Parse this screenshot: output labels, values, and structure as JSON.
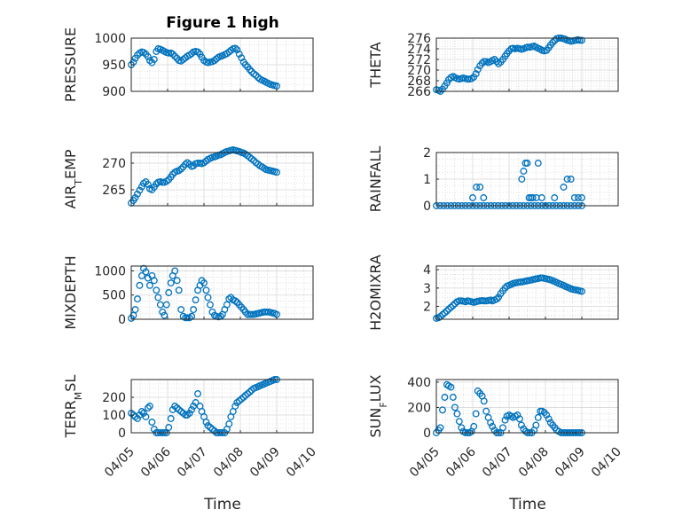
{
  "title": "Figure 1 high",
  "xlabel": "Time",
  "marker_color": "#0072BD",
  "x_ticks": [
    "04/05",
    "04/06",
    "04/07",
    "04/08",
    "04/09",
    "04/10"
  ],
  "chart_data": [
    {
      "type": "scatter",
      "ylabel": "PRESSURE",
      "ylim": [
        900,
        1000
      ],
      "yticks": [
        900,
        950,
        1000
      ],
      "xlim": [
        0,
        5
      ],
      "grid": true,
      "x": [
        0.0,
        0.06,
        0.11,
        0.17,
        0.23,
        0.29,
        0.34,
        0.4,
        0.46,
        0.51,
        0.57,
        0.63,
        0.69,
        0.74,
        0.8,
        0.86,
        0.91,
        0.97,
        1.03,
        1.09,
        1.14,
        1.2,
        1.26,
        1.31,
        1.37,
        1.43,
        1.49,
        1.54,
        1.6,
        1.66,
        1.71,
        1.77,
        1.83,
        1.89,
        1.94,
        2.0,
        2.06,
        2.11,
        2.17,
        2.23,
        2.29,
        2.34,
        2.4,
        2.46,
        2.51,
        2.57,
        2.63,
        2.69,
        2.74,
        2.8,
        2.86,
        2.91,
        2.97,
        3.03,
        3.09,
        3.14,
        3.2,
        3.26,
        3.31,
        3.37,
        3.43,
        3.49,
        3.54,
        3.6,
        3.66,
        3.71,
        3.77,
        3.83,
        3.89,
        3.94,
        4.0
      ],
      "y": [
        950,
        955,
        962,
        968,
        972,
        974,
        973,
        970,
        965,
        958,
        954,
        960,
        975,
        980,
        979,
        977,
        975,
        973,
        972,
        972,
        970,
        966,
        962,
        958,
        957,
        960,
        963,
        966,
        968,
        971,
        974,
        975,
        974,
        970,
        964,
        958,
        955,
        954,
        955,
        956,
        958,
        961,
        964,
        966,
        967,
        969,
        971,
        974,
        977,
        980,
        981,
        978,
        970,
        963,
        955,
        950,
        946,
        941,
        937,
        933,
        930,
        926,
        923,
        921,
        919,
        917,
        915,
        913,
        912,
        911,
        910
      ]
    },
    {
      "type": "scatter",
      "ylabel": "THETA",
      "ylim": [
        266,
        276
      ],
      "yticks": [
        266,
        268,
        270,
        272,
        274,
        276
      ],
      "xlim": [
        0,
        5
      ],
      "grid": true,
      "x": [
        0.0,
        0.06,
        0.11,
        0.17,
        0.23,
        0.29,
        0.34,
        0.4,
        0.46,
        0.51,
        0.57,
        0.63,
        0.69,
        0.74,
        0.8,
        0.86,
        0.91,
        0.97,
        1.03,
        1.09,
        1.14,
        1.2,
        1.26,
        1.31,
        1.37,
        1.43,
        1.49,
        1.54,
        1.6,
        1.66,
        1.71,
        1.77,
        1.83,
        1.89,
        1.94,
        2.0,
        2.06,
        2.11,
        2.17,
        2.23,
        2.29,
        2.34,
        2.4,
        2.46,
        2.51,
        2.57,
        2.63,
        2.69,
        2.74,
        2.8,
        2.86,
        2.91,
        2.97,
        3.03,
        3.09,
        3.14,
        3.2,
        3.26,
        3.31,
        3.37,
        3.43,
        3.49,
        3.54,
        3.6,
        3.66,
        3.71,
        3.77,
        3.83,
        3.89,
        3.94,
        4.0
      ],
      "y": [
        266.3,
        266.2,
        266.0,
        266.4,
        267.0,
        267.6,
        268.2,
        268.6,
        268.8,
        268.6,
        268.4,
        268.3,
        268.4,
        268.5,
        268.4,
        268.3,
        268.3,
        268.4,
        268.7,
        269.3,
        270.1,
        270.8,
        271.3,
        271.6,
        271.6,
        271.4,
        271.6,
        271.8,
        272.0,
        271.6,
        271.2,
        271.5,
        272.0,
        272.6,
        273.1,
        273.6,
        274.0,
        274.1,
        274.0,
        274.1,
        274.0,
        273.9,
        274.0,
        274.2,
        274.3,
        274.3,
        274.4,
        274.5,
        274.3,
        274.1,
        273.9,
        273.7,
        273.6,
        273.7,
        274.2,
        274.7,
        275.2,
        275.6,
        275.9,
        276.0,
        276.0,
        275.9,
        275.8,
        275.6,
        275.5,
        275.4,
        275.5,
        275.6,
        275.7,
        275.6,
        275.6
      ]
    },
    {
      "type": "scatter",
      "ylabel": "AIR_TEMP",
      "ylim": [
        262,
        272
      ],
      "yticks": [
        265,
        270
      ],
      "xlim": [
        0,
        5
      ],
      "grid": true,
      "x": [
        0.0,
        0.06,
        0.11,
        0.17,
        0.23,
        0.29,
        0.34,
        0.4,
        0.46,
        0.51,
        0.57,
        0.63,
        0.69,
        0.74,
        0.8,
        0.86,
        0.91,
        0.97,
        1.03,
        1.09,
        1.14,
        1.2,
        1.26,
        1.31,
        1.37,
        1.43,
        1.49,
        1.54,
        1.6,
        1.66,
        1.71,
        1.77,
        1.83,
        1.89,
        1.94,
        2.0,
        2.06,
        2.11,
        2.17,
        2.23,
        2.29,
        2.34,
        2.4,
        2.46,
        2.51,
        2.57,
        2.63,
        2.69,
        2.74,
        2.8,
        2.86,
        2.91,
        2.97,
        3.03,
        3.09,
        3.14,
        3.2,
        3.26,
        3.31,
        3.37,
        3.43,
        3.49,
        3.54,
        3.6,
        3.66,
        3.71,
        3.77,
        3.83,
        3.89,
        3.94,
        4.0
      ],
      "y": [
        262.5,
        263.0,
        263.5,
        264.2,
        264.9,
        265.6,
        266.2,
        266.5,
        266.0,
        265.2,
        265.0,
        265.5,
        266.1,
        266.4,
        266.5,
        266.4,
        266.4,
        266.6,
        266.9,
        267.4,
        267.9,
        268.3,
        268.5,
        268.6,
        268.9,
        269.3,
        269.8,
        270.1,
        269.8,
        269.4,
        269.5,
        269.9,
        270.0,
        270.0,
        269.9,
        270.1,
        270.4,
        270.7,
        270.9,
        271.1,
        271.2,
        271.3,
        271.5,
        271.6,
        271.8,
        272.0,
        272.2,
        272.3,
        272.4,
        272.5,
        272.4,
        272.3,
        272.2,
        272.0,
        271.9,
        271.7,
        271.4,
        271.1,
        270.8,
        270.5,
        270.1,
        269.8,
        269.5,
        269.3,
        269.0,
        268.8,
        268.7,
        268.6,
        268.5,
        268.4,
        268.3
      ]
    },
    {
      "type": "scatter",
      "ylabel": "RAINFALL",
      "ylim": [
        0,
        2
      ],
      "yticks": [
        0,
        1,
        2
      ],
      "xlim": [
        0,
        5
      ],
      "grid": true,
      "x": [
        0.0,
        0.1,
        0.2,
        0.3,
        0.4,
        0.5,
        0.6,
        0.7,
        0.8,
        0.9,
        1.0,
        1.1,
        1.2,
        1.3,
        1.4,
        1.5,
        1.6,
        1.7,
        1.8,
        1.9,
        2.0,
        2.1,
        2.2,
        2.3,
        2.4,
        2.5,
        2.6,
        2.7,
        2.8,
        2.9,
        3.0,
        3.1,
        3.2,
        3.3,
        3.4,
        3.5,
        3.6,
        3.7,
        3.8,
        3.9,
        4.0,
        1.0,
        1.1,
        1.2,
        1.3,
        2.35,
        2.4,
        2.45,
        2.5,
        2.55,
        2.6,
        2.65,
        2.75,
        2.8,
        2.9,
        3.0,
        3.25,
        3.5,
        3.6,
        3.7,
        3.8,
        3.9,
        4.0
      ],
      "y": [
        0,
        0,
        0,
        0,
        0,
        0,
        0,
        0,
        0,
        0,
        0,
        0,
        0,
        0,
        0,
        0,
        0,
        0,
        0,
        0,
        0,
        0,
        0,
        0,
        0,
        0,
        0,
        0,
        0,
        0,
        0,
        0,
        0,
        0,
        0,
        0,
        0,
        0,
        0,
        0,
        0,
        0.3,
        0.7,
        0.7,
        0.3,
        1.0,
        1.3,
        1.6,
        1.6,
        0.3,
        0.3,
        0.3,
        0.3,
        1.6,
        0.3,
        0,
        0.3,
        0.7,
        1.0,
        1.0,
        0.3,
        0.3,
        0.3
      ]
    },
    {
      "type": "scatter",
      "ylabel": "MIXDEPTH",
      "ylim": [
        0,
        1100
      ],
      "yticks": [
        0,
        500,
        1000
      ],
      "xlim": [
        0,
        5
      ],
      "grid": true,
      "x": [
        0.0,
        0.06,
        0.11,
        0.17,
        0.23,
        0.29,
        0.34,
        0.4,
        0.46,
        0.51,
        0.57,
        0.63,
        0.69,
        0.74,
        0.8,
        0.86,
        0.91,
        0.97,
        1.03,
        1.09,
        1.14,
        1.2,
        1.26,
        1.31,
        1.37,
        1.43,
        1.49,
        1.54,
        1.6,
        1.66,
        1.71,
        1.77,
        1.83,
        1.89,
        1.94,
        2.0,
        2.06,
        2.11,
        2.17,
        2.23,
        2.29,
        2.34,
        2.4,
        2.46,
        2.51,
        2.57,
        2.63,
        2.69,
        2.74,
        2.8,
        2.86,
        2.91,
        2.97,
        3.03,
        3.09,
        3.14,
        3.2,
        3.26,
        3.31,
        3.37,
        3.43,
        3.49,
        3.54,
        3.6,
        3.66,
        3.71,
        3.77,
        3.83,
        3.89,
        3.94,
        4.0
      ],
      "y": [
        20,
        80,
        200,
        420,
        700,
        900,
        1050,
        980,
        850,
        700,
        900,
        800,
        600,
        450,
        300,
        150,
        80,
        300,
        550,
        750,
        900,
        1000,
        800,
        600,
        200,
        60,
        30,
        30,
        30,
        60,
        200,
        400,
        600,
        700,
        800,
        750,
        600,
        450,
        300,
        150,
        80,
        60,
        50,
        60,
        100,
        200,
        300,
        420,
        450,
        400,
        380,
        350,
        300,
        250,
        200,
        150,
        100,
        100,
        100,
        100,
        110,
        120,
        130,
        140,
        150,
        150,
        150,
        140,
        130,
        120,
        100
      ]
    },
    {
      "type": "scatter",
      "ylabel": "H2OMIXRA",
      "ylim": [
        1.3,
        4.2
      ],
      "yticks": [
        2,
        3,
        4
      ],
      "xlim": [
        0,
        5
      ],
      "grid": true,
      "x": [
        0.0,
        0.06,
        0.11,
        0.17,
        0.23,
        0.29,
        0.34,
        0.4,
        0.46,
        0.51,
        0.57,
        0.63,
        0.69,
        0.74,
        0.8,
        0.86,
        0.91,
        0.97,
        1.03,
        1.09,
        1.14,
        1.2,
        1.26,
        1.31,
        1.37,
        1.43,
        1.49,
        1.54,
        1.6,
        1.66,
        1.71,
        1.77,
        1.83,
        1.89,
        1.94,
        2.0,
        2.06,
        2.11,
        2.17,
        2.23,
        2.29,
        2.34,
        2.4,
        2.46,
        2.51,
        2.57,
        2.63,
        2.69,
        2.74,
        2.8,
        2.86,
        2.91,
        2.97,
        3.03,
        3.09,
        3.14,
        3.2,
        3.26,
        3.31,
        3.37,
        3.43,
        3.49,
        3.54,
        3.6,
        3.66,
        3.71,
        3.77,
        3.83,
        3.89,
        3.94,
        4.0
      ],
      "y": [
        1.35,
        1.38,
        1.45,
        1.55,
        1.65,
        1.75,
        1.85,
        1.95,
        2.05,
        2.15,
        2.25,
        2.3,
        2.3,
        2.28,
        2.25,
        2.3,
        2.28,
        2.25,
        2.22,
        2.25,
        2.28,
        2.3,
        2.32,
        2.3,
        2.3,
        2.32,
        2.35,
        2.3,
        2.35,
        2.4,
        2.5,
        2.7,
        2.85,
        3.0,
        3.1,
        3.15,
        3.2,
        3.25,
        3.28,
        3.3,
        3.32,
        3.33,
        3.35,
        3.38,
        3.4,
        3.42,
        3.45,
        3.48,
        3.5,
        3.52,
        3.55,
        3.55,
        3.53,
        3.5,
        3.48,
        3.45,
        3.4,
        3.35,
        3.3,
        3.25,
        3.2,
        3.15,
        3.1,
        3.05,
        3.0,
        2.95,
        2.92,
        2.9,
        2.88,
        2.85,
        2.82
      ]
    },
    {
      "type": "scatter",
      "ylabel": "TERR_MSL",
      "ylim": [
        0,
        300
      ],
      "yticks": [
        0,
        100,
        200
      ],
      "xlim": [
        0,
        5
      ],
      "grid": true,
      "x": [
        0.0,
        0.06,
        0.11,
        0.17,
        0.23,
        0.29,
        0.34,
        0.4,
        0.46,
        0.51,
        0.57,
        0.63,
        0.69,
        0.74,
        0.8,
        0.86,
        0.91,
        0.97,
        1.03,
        1.09,
        1.14,
        1.2,
        1.26,
        1.31,
        1.37,
        1.43,
        1.49,
        1.54,
        1.6,
        1.66,
        1.71,
        1.77,
        1.83,
        1.89,
        1.94,
        2.0,
        2.06,
        2.11,
        2.17,
        2.23,
        2.29,
        2.34,
        2.4,
        2.46,
        2.51,
        2.57,
        2.63,
        2.69,
        2.74,
        2.8,
        2.86,
        2.91,
        2.97,
        3.03,
        3.09,
        3.14,
        3.2,
        3.26,
        3.31,
        3.37,
        3.43,
        3.49,
        3.54,
        3.6,
        3.66,
        3.71,
        3.77,
        3.83,
        3.89,
        3.94,
        4.0
      ],
      "y": [
        110,
        100,
        90,
        80,
        100,
        120,
        110,
        90,
        140,
        150,
        60,
        20,
        0,
        0,
        0,
        0,
        0,
        0,
        30,
        80,
        130,
        150,
        140,
        130,
        120,
        110,
        100,
        100,
        110,
        130,
        150,
        170,
        220,
        150,
        120,
        90,
        60,
        40,
        30,
        20,
        10,
        0,
        0,
        0,
        0,
        0,
        20,
        50,
        90,
        120,
        150,
        170,
        180,
        190,
        200,
        210,
        220,
        230,
        240,
        250,
        255,
        260,
        265,
        270,
        275,
        280,
        285,
        290,
        295,
        300,
        300
      ]
    },
    {
      "type": "scatter",
      "ylabel": "SUN_FLUX",
      "ylim": [
        0,
        420
      ],
      "yticks": [
        0,
        200,
        400
      ],
      "xlim": [
        0,
        5
      ],
      "grid": true,
      "x": [
        0.0,
        0.06,
        0.11,
        0.17,
        0.23,
        0.29,
        0.34,
        0.4,
        0.46,
        0.51,
        0.57,
        0.63,
        0.69,
        0.74,
        0.8,
        0.86,
        0.91,
        0.97,
        1.03,
        1.09,
        1.14,
        1.2,
        1.26,
        1.31,
        1.37,
        1.43,
        1.49,
        1.54,
        1.6,
        1.66,
        1.71,
        1.77,
        1.83,
        1.89,
        1.94,
        2.0,
        2.06,
        2.11,
        2.17,
        2.23,
        2.29,
        2.34,
        2.4,
        2.46,
        2.51,
        2.57,
        2.63,
        2.69,
        2.74,
        2.8,
        2.86,
        2.91,
        2.97,
        3.03,
        3.09,
        3.14,
        3.2,
        3.26,
        3.31,
        3.37,
        3.43,
        3.49,
        3.54,
        3.6,
        3.66,
        3.71,
        3.77,
        3.83,
        3.89,
        3.94,
        4.0
      ],
      "y": [
        0,
        20,
        40,
        180,
        280,
        380,
        370,
        360,
        280,
        200,
        150,
        90,
        40,
        10,
        0,
        0,
        0,
        10,
        50,
        150,
        330,
        310,
        290,
        250,
        170,
        120,
        80,
        50,
        20,
        0,
        0,
        0,
        40,
        100,
        130,
        140,
        130,
        120,
        130,
        140,
        110,
        60,
        30,
        10,
        0,
        0,
        0,
        20,
        60,
        120,
        170,
        170,
        160,
        140,
        110,
        80,
        60,
        40,
        20,
        10,
        0,
        0,
        0,
        0,
        0,
        0,
        0,
        0,
        0,
        0,
        0
      ]
    }
  ]
}
